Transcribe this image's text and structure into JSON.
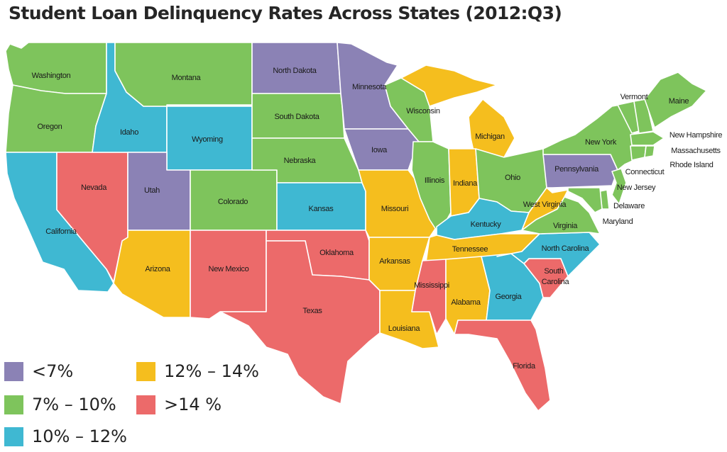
{
  "title": "Student Loan Delinquency Rates Across States (2012:Q3)",
  "colors": {
    "lt7": "#8b82b5",
    "r7_10": "#7ec45c",
    "r10_12": "#3fb8d2",
    "r12_14": "#f5be1e",
    "gt14": "#ec6a6a"
  },
  "legend": [
    {
      "key": "lt7",
      "label": "<7%"
    },
    {
      "key": "r12_14",
      "label": "12% – 14%"
    },
    {
      "key": "r7_10",
      "label": "7% – 10%"
    },
    {
      "key": "gt14",
      "label": ">14 %"
    },
    {
      "key": "r10_12",
      "label": "10% – 12%"
    }
  ],
  "states": [
    {
      "id": "WA",
      "name": "Washington",
      "bin": "r7_10"
    },
    {
      "id": "OR",
      "name": "Oregon",
      "bin": "r7_10"
    },
    {
      "id": "CA",
      "name": "California",
      "bin": "r10_12"
    },
    {
      "id": "NV",
      "name": "Nevada",
      "bin": "gt14"
    },
    {
      "id": "ID",
      "name": "Idaho",
      "bin": "r10_12"
    },
    {
      "id": "MT",
      "name": "Montana",
      "bin": "r7_10"
    },
    {
      "id": "WY",
      "name": "Wyoming",
      "bin": "r10_12"
    },
    {
      "id": "UT",
      "name": "Utah",
      "bin": "lt7"
    },
    {
      "id": "AZ",
      "name": "Arizona",
      "bin": "r12_14"
    },
    {
      "id": "CO",
      "name": "Colorado",
      "bin": "r7_10"
    },
    {
      "id": "NM",
      "name": "New Mexico",
      "bin": "gt14"
    },
    {
      "id": "ND",
      "name": "North Dakota",
      "bin": "lt7"
    },
    {
      "id": "SD",
      "name": "South Dakota",
      "bin": "r7_10"
    },
    {
      "id": "NE",
      "name": "Nebraska",
      "bin": "r7_10"
    },
    {
      "id": "KS",
      "name": "Kansas",
      "bin": "r10_12"
    },
    {
      "id": "OK",
      "name": "Oklahoma",
      "bin": "gt14"
    },
    {
      "id": "TX",
      "name": "Texas",
      "bin": "gt14"
    },
    {
      "id": "MN",
      "name": "Minnesota",
      "bin": "lt7"
    },
    {
      "id": "IA",
      "name": "Iowa",
      "bin": "lt7"
    },
    {
      "id": "MO",
      "name": "Missouri",
      "bin": "r12_14"
    },
    {
      "id": "AR",
      "name": "Arkansas",
      "bin": "r12_14"
    },
    {
      "id": "LA",
      "name": "Louisiana",
      "bin": "r12_14"
    },
    {
      "id": "WI",
      "name": "Wisconsin",
      "bin": "r7_10"
    },
    {
      "id": "IL",
      "name": "Illinois",
      "bin": "r7_10"
    },
    {
      "id": "MI",
      "name": "Michigan",
      "bin": "r12_14"
    },
    {
      "id": "IN",
      "name": "Indiana",
      "bin": "r12_14"
    },
    {
      "id": "OH",
      "name": "Ohio",
      "bin": "r7_10"
    },
    {
      "id": "KY",
      "name": "Kentucky",
      "bin": "r10_12"
    },
    {
      "id": "TN",
      "name": "Tennessee",
      "bin": "r12_14"
    },
    {
      "id": "MS",
      "name": "Mississippi",
      "bin": "gt14"
    },
    {
      "id": "AL",
      "name": "Alabama",
      "bin": "r12_14"
    },
    {
      "id": "GA",
      "name": "Georgia",
      "bin": "r10_12"
    },
    {
      "id": "FL",
      "name": "Florida",
      "bin": "gt14"
    },
    {
      "id": "SC",
      "name": "South Carolina",
      "bin": "gt14"
    },
    {
      "id": "NC",
      "name": "North Carolina",
      "bin": "r10_12"
    },
    {
      "id": "VA",
      "name": "Virginia",
      "bin": "r7_10"
    },
    {
      "id": "WV",
      "name": "West Virginia",
      "bin": "r12_14"
    },
    {
      "id": "PA",
      "name": "Pennsylvania",
      "bin": "lt7"
    },
    {
      "id": "NY",
      "name": "New York",
      "bin": "r7_10"
    },
    {
      "id": "VT",
      "name": "Vermont",
      "bin": "r7_10"
    },
    {
      "id": "ME",
      "name": "Maine",
      "bin": "r7_10"
    },
    {
      "id": "NH",
      "name": "New Hampshire",
      "bin": "r7_10"
    },
    {
      "id": "MA",
      "name": "Massachusetts",
      "bin": "r7_10"
    },
    {
      "id": "RI",
      "name": "Rhode Island",
      "bin": "r7_10"
    },
    {
      "id": "CT",
      "name": "Connecticut",
      "bin": "r7_10"
    },
    {
      "id": "NJ",
      "name": "New Jersey",
      "bin": "r7_10"
    },
    {
      "id": "DE",
      "name": "Delaware",
      "bin": "r7_10"
    },
    {
      "id": "MD",
      "name": "Maryland",
      "bin": "r7_10"
    }
  ]
}
